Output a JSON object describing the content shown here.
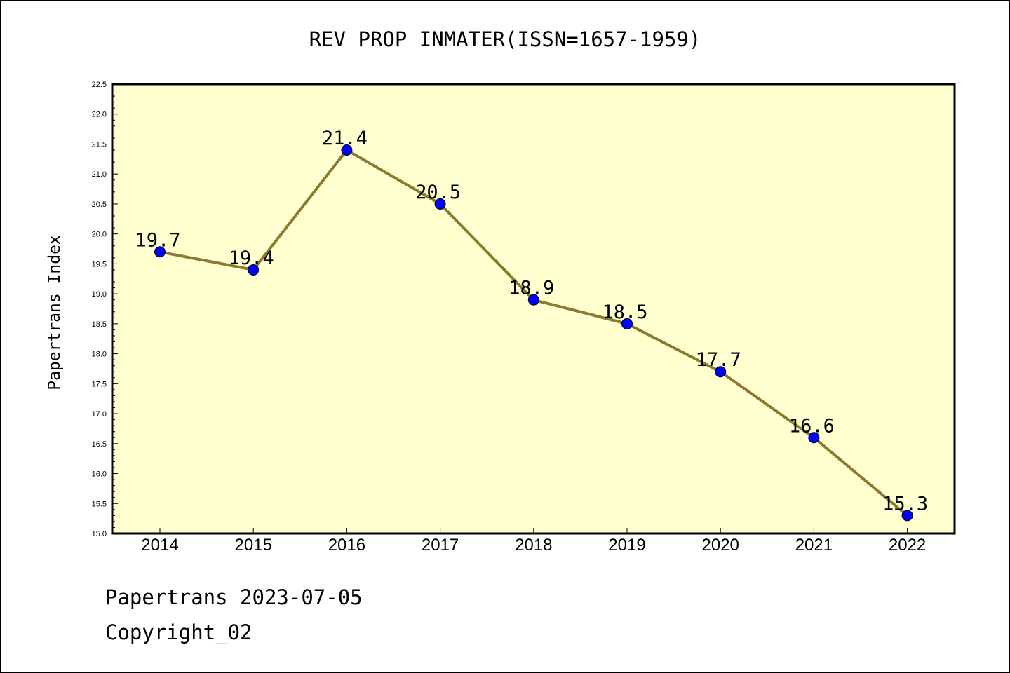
{
  "chart_data": {
    "type": "line",
    "title": "REV PROP INMATER(ISSN=1657-1959)",
    "ylabel": "Papertrans Index",
    "xlabel": "",
    "categories": [
      "2014",
      "2015",
      "2016",
      "2017",
      "2018",
      "2019",
      "2020",
      "2021",
      "2022"
    ],
    "values": [
      19.7,
      19.4,
      21.4,
      20.5,
      18.9,
      18.5,
      17.7,
      16.6,
      15.3
    ],
    "data_labels": [
      "19.7",
      "19.4",
      "21.4",
      "20.5",
      "18.9",
      "18.5",
      "17.7",
      "16.6",
      "15.3"
    ],
    "ylim": [
      15.0,
      22.5
    ],
    "y_ticks": [
      "15.0",
      "15.5",
      "16.0",
      "16.5",
      "17.0",
      "17.5",
      "18.0",
      "18.5",
      "19.0",
      "19.5",
      "20.0",
      "20.5",
      "21.0",
      "21.5",
      "22.0",
      "22.5"
    ],
    "grid": false,
    "colors": {
      "plot_background": "#ffffd0",
      "line": "#8b7a30",
      "marker": "#0000ff"
    }
  },
  "footer": {
    "line1": "Papertrans 2023-07-05",
    "line2": "Copyright_02"
  }
}
